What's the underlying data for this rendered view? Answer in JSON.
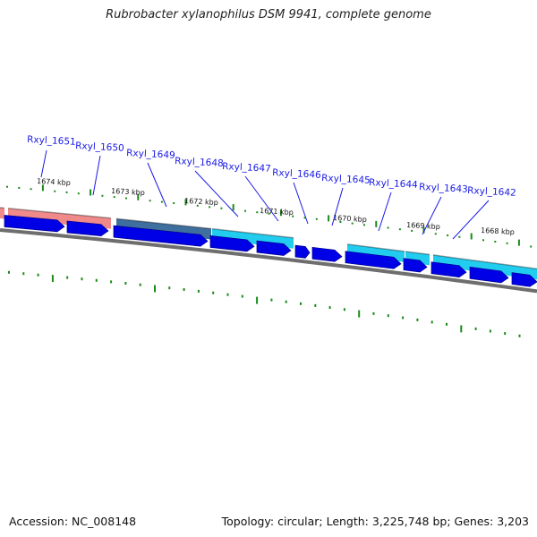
{
  "title": "Rubrobacter xylanophilus DSM 9941, complete genome",
  "footer": {
    "accession": "Accession: NC_008148",
    "topology": "Topology: circular; Length: 3,225,748 bp; Genes: 3,203"
  },
  "colors": {
    "gene_label": "#1a1ae6",
    "cds_arrow": "#0000e6",
    "backbone": "#6e6e6e",
    "tick": "#1a8a1a",
    "feature_salmon": "#f08a8a",
    "feature_steelblue": "#3f6f9f",
    "feature_cyan": "#22ccee"
  },
  "scale_labels": [
    "1674 kbp",
    "1673 kbp",
    "1672 kbp",
    "1671 kbp",
    "1670 kbp",
    "1669 kbp",
    "1668 kbp"
  ],
  "gene_labels": [
    "Rxyl_1651",
    "Rxyl_1650",
    "Rxyl_1649",
    "Rxyl_1648",
    "Rxyl_1647",
    "Rxyl_1646",
    "Rxyl_1645",
    "Rxyl_1644",
    "Rxyl_1643",
    "Rxyl_1642"
  ]
}
